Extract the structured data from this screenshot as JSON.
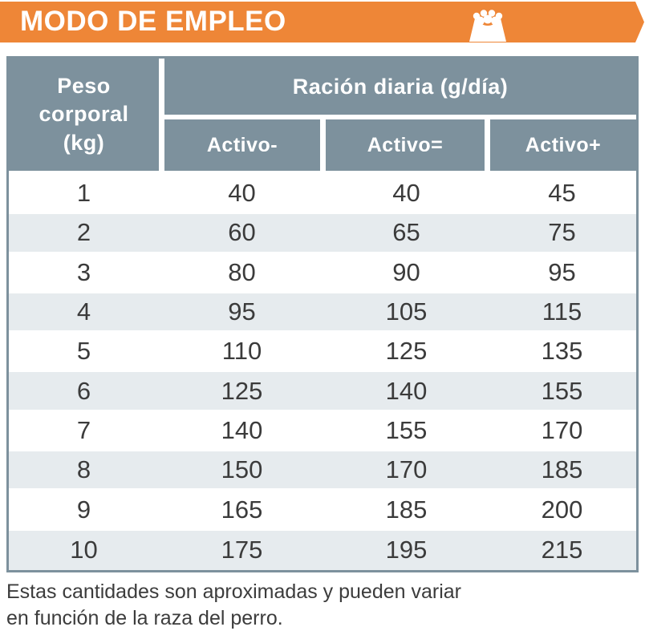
{
  "header": {
    "title": "MODO DE EMPLEO",
    "accent_color": "#EE8637",
    "icon": "dog-bowl-icon"
  },
  "table": {
    "header_bg": "#7D919D",
    "alt_row_bg": "#E6EBEE",
    "corner_header": "Peso\ncorporal\n(kg)",
    "span_header": "Ración diaria (g/día)",
    "sub_headers": [
      "Activo-",
      "Activo=",
      "Activo+"
    ],
    "rows": [
      {
        "weight": "1",
        "values": [
          "40",
          "40",
          "45"
        ]
      },
      {
        "weight": "2",
        "values": [
          "60",
          "65",
          "75"
        ]
      },
      {
        "weight": "3",
        "values": [
          "80",
          "90",
          "95"
        ]
      },
      {
        "weight": "4",
        "values": [
          "95",
          "105",
          "115"
        ]
      },
      {
        "weight": "5",
        "values": [
          "110",
          "125",
          "135"
        ]
      },
      {
        "weight": "6",
        "values": [
          "125",
          "140",
          "155"
        ]
      },
      {
        "weight": "7",
        "values": [
          "140",
          "155",
          "170"
        ]
      },
      {
        "weight": "8",
        "values": [
          "150",
          "170",
          "185"
        ]
      },
      {
        "weight": "9",
        "values": [
          "165",
          "185",
          "200"
        ]
      },
      {
        "weight": "10",
        "values": [
          "175",
          "195",
          "215"
        ]
      }
    ]
  },
  "footnote": "Estas cantidades son aproximadas y pueden variar\nen función de la raza del perro."
}
